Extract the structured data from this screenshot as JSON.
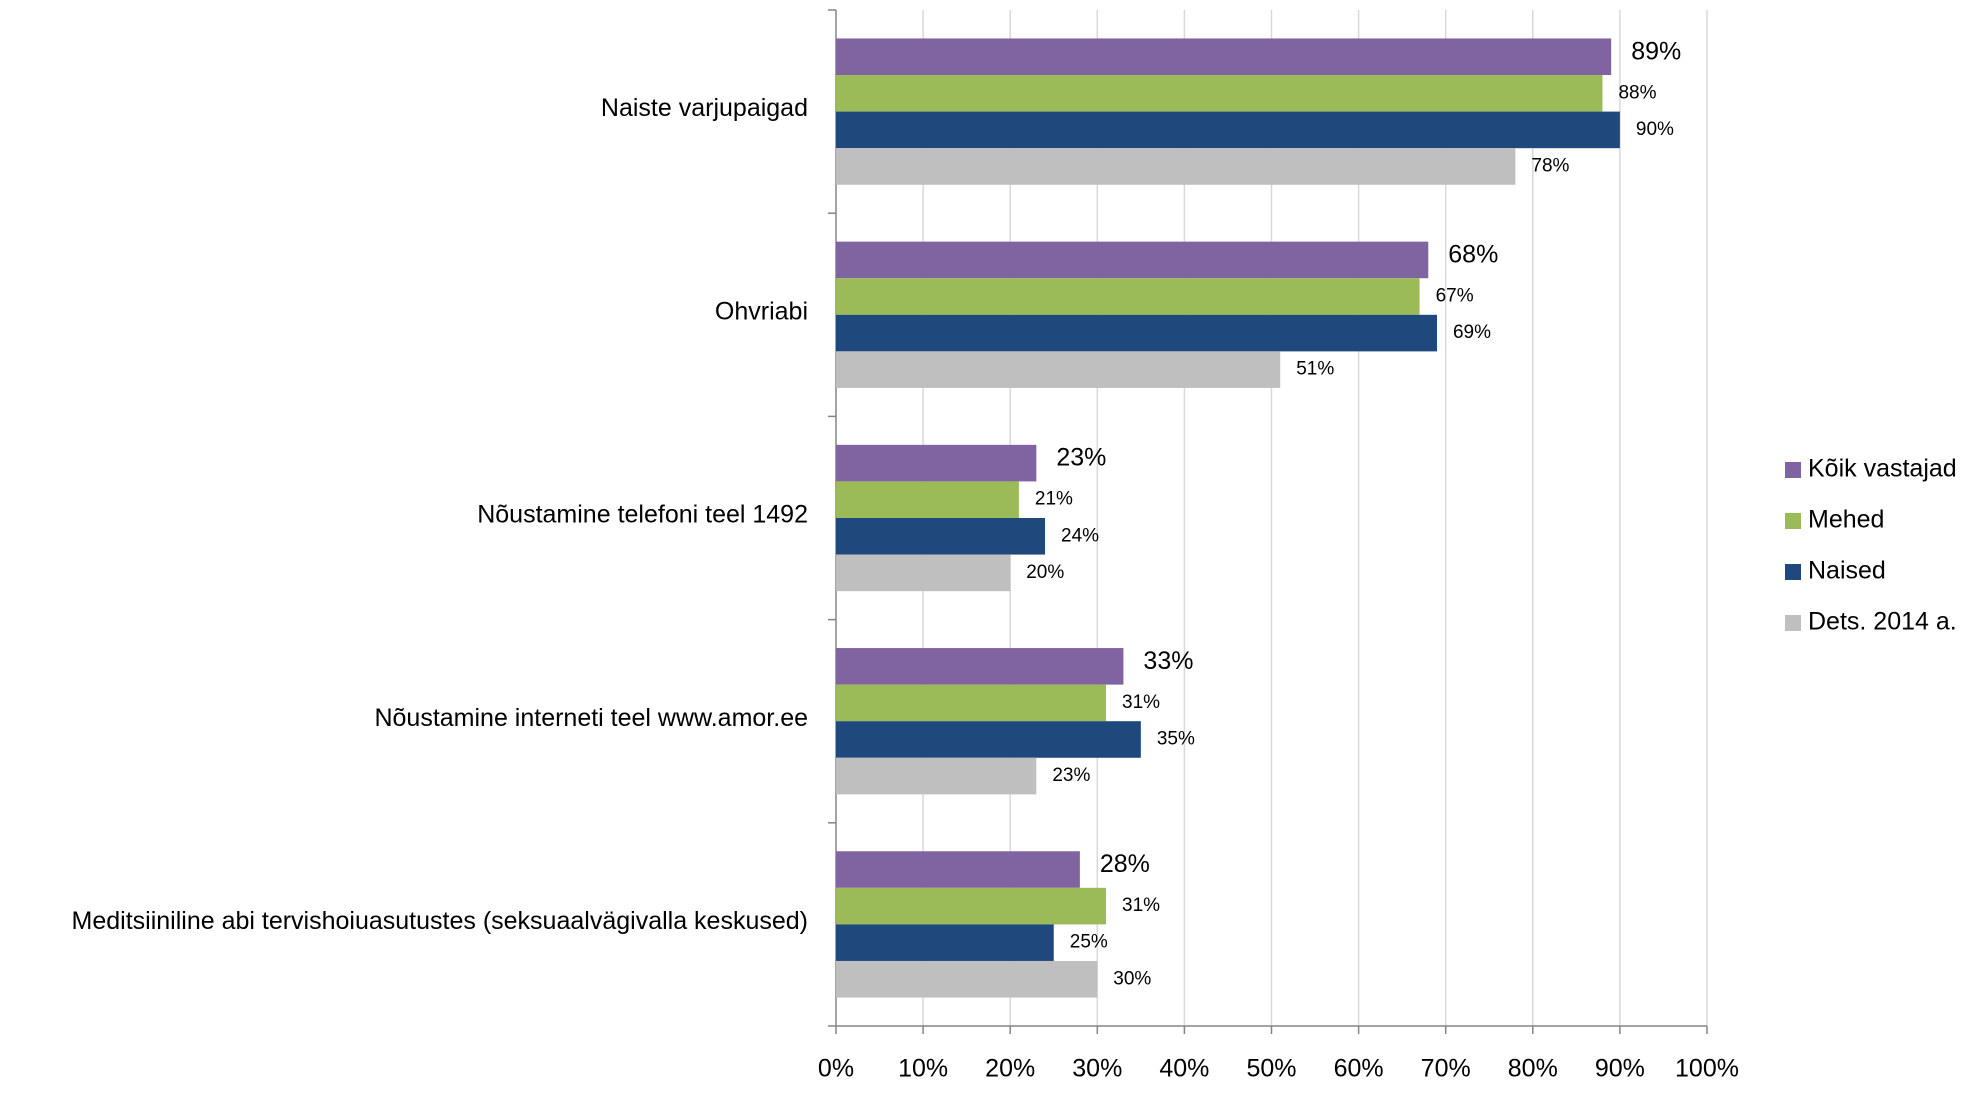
{
  "chart_data": {
    "type": "bar",
    "orientation": "horizontal",
    "categories": [
      "Naiste varjupaigad",
      "Ohvriabi",
      "Nõustamine telefoni teel 1492",
      "Nõustamine interneti teel www.amor.ee",
      "Meditsiiniline abi tervishoiuasutustes (seksuaalvägivalla keskused)"
    ],
    "series": [
      {
        "name": "Kõik vastajad",
        "color": "#8064a2",
        "values": [
          89,
          68,
          23,
          33,
          28
        ],
        "value_labels": [
          "89%",
          "68%",
          "23%",
          "33%",
          "28%"
        ]
      },
      {
        "name": "Mehed",
        "color": "#9bbb59",
        "values": [
          88,
          67,
          21,
          31,
          31
        ],
        "value_labels": [
          "88%",
          "67%",
          "21%",
          "31%",
          "31%"
        ]
      },
      {
        "name": "Naised",
        "color": "#1f497d",
        "values": [
          90,
          69,
          24,
          35,
          25
        ],
        "value_labels": [
          "90%",
          "69%",
          "24%",
          "35%",
          "25%"
        ]
      },
      {
        "name": "Dets. 2014 a.",
        "color": "#bfbfbf",
        "values": [
          78,
          51,
          20,
          23,
          30
        ],
        "value_labels": [
          "78%",
          "51%",
          "20%",
          "23%",
          "30%"
        ]
      }
    ],
    "xlim": [
      0,
      100
    ],
    "xticks": [
      {
        "value": 0,
        "label": "0%"
      },
      {
        "value": 10,
        "label": "10%"
      },
      {
        "value": 20,
        "label": "20%"
      },
      {
        "value": 30,
        "label": "30%"
      },
      {
        "value": 40,
        "label": "40%"
      },
      {
        "value": 50,
        "label": "50%"
      },
      {
        "value": 60,
        "label": "60%"
      },
      {
        "value": 70,
        "label": "70%"
      },
      {
        "value": 80,
        "label": "80%"
      },
      {
        "value": 90,
        "label": "90%"
      },
      {
        "value": 100,
        "label": "100%"
      }
    ],
    "grid": true,
    "legend": "right"
  }
}
